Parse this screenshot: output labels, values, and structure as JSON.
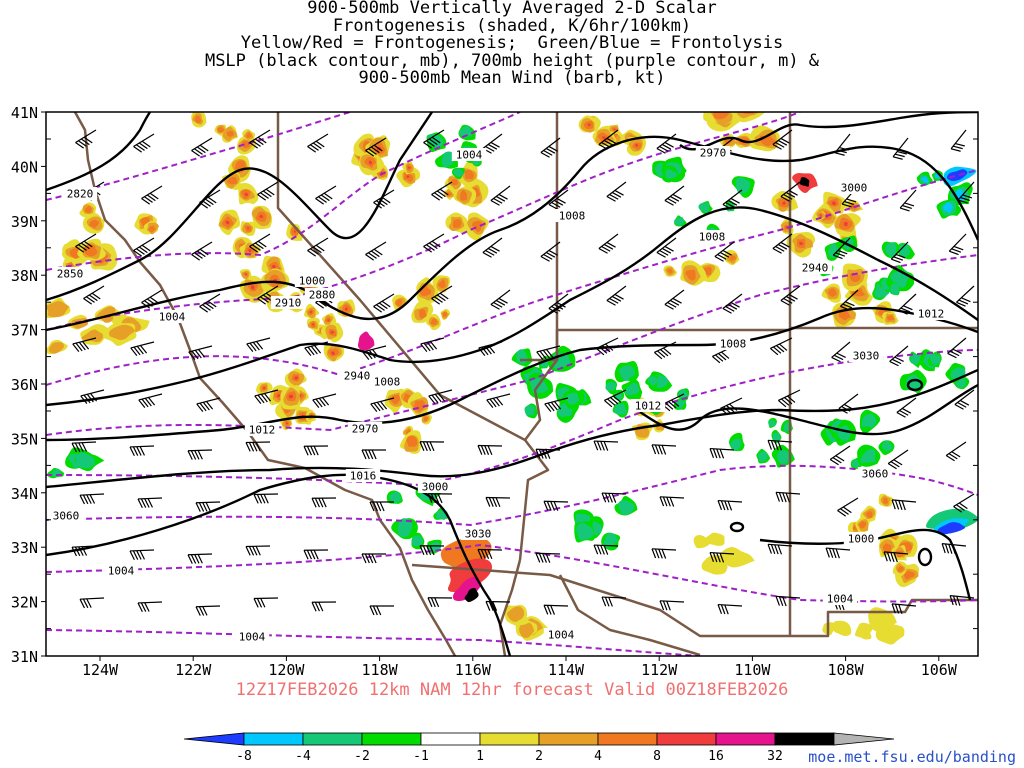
{
  "title": {
    "lines": [
      "900-500mb Vertically Averaged 2-D Scalar",
      "Frontogenesis (shaded, K/6hr/100km)",
      "Yellow/Red = Frontogenesis;  Green/Blue = Frontolysis",
      "MSLP (black contour, mb), 700mb height (purple contour, m) &",
      "900-500mb Mean Wind (barb, kt)"
    ]
  },
  "valid_line": "12Z17FEB2026 12km NAM 12hr forecast Valid 00Z18FEB2026",
  "source_url": "moe.met.fsu.edu/banding",
  "colors": {
    "neg_strong": "#1e3cff",
    "neg_mid": "#00c8ff",
    "neg": "#14c878",
    "neg_weak": "#00dc00",
    "pos_weak": "#e6dc32",
    "pos": "#e6a028",
    "pos_mid": "#f07820",
    "pos_strong": "#f03c3c",
    "pos_vstrong": "#e6148c",
    "pos_extreme": "#000000",
    "mslp": "#000000",
    "height": "#a020c8",
    "border": "#785a46",
    "barb": "#000000"
  },
  "map": {
    "lat_labels": [
      "41N",
      "40N",
      "39N",
      "38N",
      "37N",
      "36N",
      "35N",
      "34N",
      "33N",
      "32N",
      "31N"
    ],
    "lon_labels": [
      "124W",
      "122W",
      "120W",
      "118W",
      "116W",
      "114W",
      "112W",
      "110W",
      "108W",
      "106W"
    ]
  },
  "mslp_labels": [
    "2820",
    "2850",
    "1000",
    "2880",
    "2910",
    "1004",
    "2940",
    "1008",
    "2970",
    "1012",
    "1016",
    "3000",
    "3030",
    "3060",
    "1004",
    "1004",
    "1004",
    "1004",
    "1008",
    "2970",
    "1008",
    "2940",
    "1008",
    "3000",
    "1012",
    "3030",
    "1012",
    "3060",
    "1000",
    "1004"
  ],
  "colorbar": {
    "labels": [
      "-8",
      "-4",
      "-2",
      "-1",
      "1",
      "2",
      "4",
      "8",
      "16",
      "32"
    ],
    "colors": [
      "#1e3cff",
      "#00c8ff",
      "#14c878",
      "#00dc00",
      "#ffffff",
      "#e6dc32",
      "#e6a028",
      "#f07820",
      "#f03c3c",
      "#e6148c",
      "#000000",
      "#b4b4b4"
    ]
  }
}
